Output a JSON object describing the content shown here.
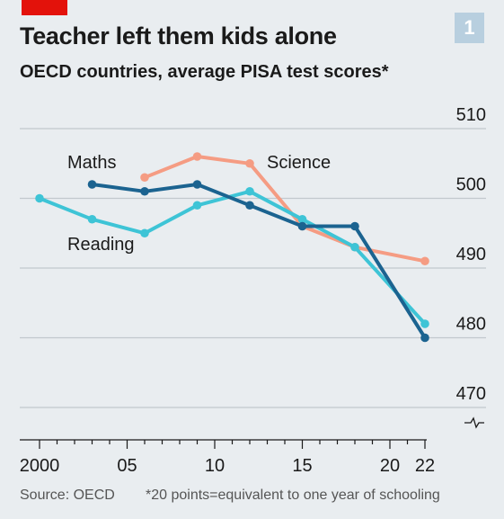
{
  "header": {
    "chart_number": "1",
    "title": "Teacher left them kids alone",
    "subtitle": "OECD countries, average PISA test scores*"
  },
  "footer": {
    "source": "Source: OECD",
    "note": "*20 points=equivalent to one year of schooling"
  },
  "colors": {
    "brand_red": "#e3120b",
    "maths": "#1b6390",
    "reading": "#3ec4d6",
    "science": "#f59c83",
    "gridline": "#c2c8cd",
    "axis": "#1a1a1a"
  },
  "chart_data": {
    "type": "line",
    "title": "Teacher left them kids alone",
    "subtitle": "OECD countries, average PISA test scores*",
    "xlabel": "",
    "ylabel": "",
    "xlim": [
      2000,
      2022
    ],
    "ylim": [
      466,
      511
    ],
    "y_ticks": [
      470,
      480,
      490,
      500,
      510
    ],
    "x_ticks": [
      {
        "value": 2000,
        "label": "2000"
      },
      {
        "value": 2005,
        "label": "05"
      },
      {
        "value": 2010,
        "label": "10"
      },
      {
        "value": 2015,
        "label": "15"
      },
      {
        "value": 2020,
        "label": "20"
      },
      {
        "value": 2022,
        "label": "22"
      }
    ],
    "axis_break": true,
    "grid": "horizontal",
    "y_axis_position": "right",
    "legend": "direct labels",
    "series": [
      {
        "name": "Maths",
        "x": [
          2003,
          2006,
          2009,
          2012,
          2015,
          2018,
          2022
        ],
        "values": [
          502,
          501,
          502,
          499,
          496,
          496,
          480
        ]
      },
      {
        "name": "Reading",
        "x": [
          2000,
          2003,
          2006,
          2009,
          2012,
          2015,
          2018,
          2022
        ],
        "values": [
          500,
          497,
          495,
          499,
          501,
          497,
          493,
          482
        ]
      },
      {
        "name": "Science",
        "x": [
          2006,
          2009,
          2012,
          2015,
          2018,
          2022
        ],
        "values": [
          503,
          506,
          505,
          496,
          493,
          491
        ]
      }
    ]
  }
}
